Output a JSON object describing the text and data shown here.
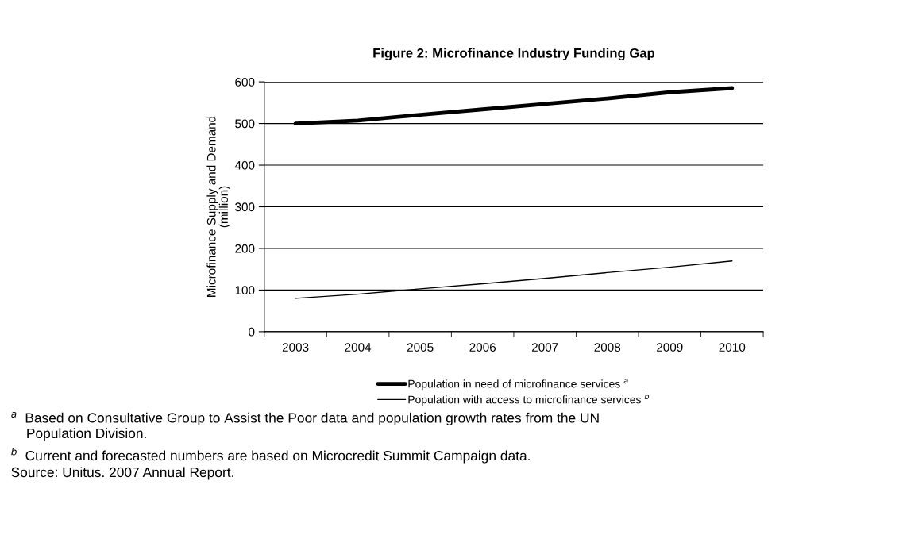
{
  "chart_data": {
    "type": "line",
    "title": "Figure 2: Microfinance Industry Funding Gap",
    "ylabel": "Microfinance Supply and Demand\n(million)",
    "categories": [
      "2003",
      "2004",
      "2005",
      "2006",
      "2007",
      "2008",
      "2009",
      "2010"
    ],
    "series": [
      {
        "name": "Population in need of microfinance services $^{a}$",
        "color": "#000000",
        "values": [
          500,
          507,
          521,
          534,
          547,
          560,
          575,
          585
        ]
      },
      {
        "name": "Population with access to microfinance services $^{b}$",
        "color": "#000000",
        "values": [
          80,
          90,
          103,
          115,
          128,
          142,
          155,
          170
        ]
      }
    ],
    "ylim": [
      0,
      600
    ],
    "yticks": [
      0,
      100,
      200,
      300,
      400,
      500,
      600
    ],
    "grid": "y",
    "legend": "bottom",
    "marker": "none",
    "line_style": "solid",
    "annotations": [
      "$^{a}$  Based on Consultative Group to Assist the Poor data and population growth rates from the UN\n    Population Division.",
      "$^{b}$  Current and forecasted numbers are based on Microcredit Summit Campaign data.",
      "Source: Unitus. 2007 Annual Report."
    ]
  }
}
